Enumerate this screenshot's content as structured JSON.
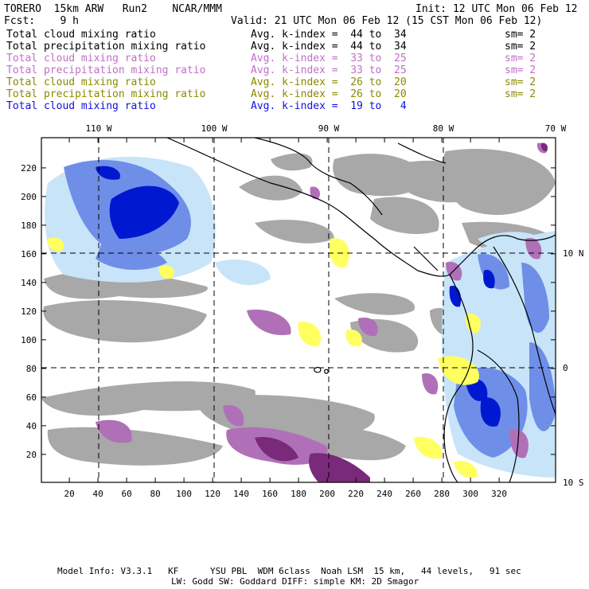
{
  "header": {
    "model": "TORERO  15km ARW   Run2    NCAR/MMM",
    "init": "Init: 12 UTC Mon 06 Feb 12",
    "fcst_label": "Fcst:    9 h",
    "valid": "Valid: 21 UTC Mon 06 Feb 12 (15 CST Mon 06 Feb 12)"
  },
  "legend": [
    {
      "field": "Total cloud mixing ratio",
      "kindex": "Avg. k-index =  44 to  34",
      "sm": "sm= 2",
      "color": "#000000"
    },
    {
      "field": "Total precipitation mixing ratio",
      "kindex": "Avg. k-index =  44 to  34",
      "sm": "sm= 2",
      "color": "#000000"
    },
    {
      "field": "Total cloud mixing ratio",
      "kindex": "Avg. k-index =  33 to  25",
      "sm": "sm= 2",
      "color": "#c070c8"
    },
    {
      "field": "Total precipitation mixing ratio",
      "kindex": "Avg. k-index =  33 to  25",
      "sm": "sm= 2",
      "color": "#c070c8"
    },
    {
      "field": "Total cloud mixing ratio",
      "kindex": "Avg. k-index =  26 to  20",
      "sm": "sm= 2",
      "color": "#8a8a00"
    },
    {
      "field": "Total precipitation mixing ratio",
      "kindex": "Avg. k-index =  26 to  20",
      "sm": "sm= 2",
      "color": "#8a8a00"
    },
    {
      "field": "Total cloud mixing ratio",
      "kindex": "Avg. k-index =  19 to   4",
      "sm": "",
      "color": "#1010e0"
    }
  ],
  "axes": {
    "lon_labels": [
      "110 W",
      "100 W",
      "90 W",
      "80 W",
      "70 W"
    ],
    "lat_labels": [
      "10 N",
      "0",
      "10 S"
    ],
    "x_ticks": [
      "20",
      "40",
      "60",
      "80",
      "100",
      "120",
      "140",
      "160",
      "180",
      "200",
      "220",
      "240",
      "260",
      "280",
      "300",
      "320"
    ],
    "y_ticks": [
      "20",
      "40",
      "60",
      "80",
      "100",
      "120",
      "140",
      "160",
      "180",
      "200",
      "220"
    ]
  },
  "footer": {
    "line1": "Model Info: V3.3.1   KF      YSU PBL  WDM 6class  Noah LSM  15 km,   44 levels,   91 sec",
    "line2": "LW: Godd SW: Goddard DIFF: simple KM: 2D Smagor"
  },
  "colors": {
    "gray": "#a8a8a8",
    "pink": "#b070b8",
    "purple": "#7a2a7a",
    "yellow": "#ffff60",
    "lightblue": "#c8e4f8",
    "blue": "#4060e0",
    "darkblue": "#0010c8"
  }
}
